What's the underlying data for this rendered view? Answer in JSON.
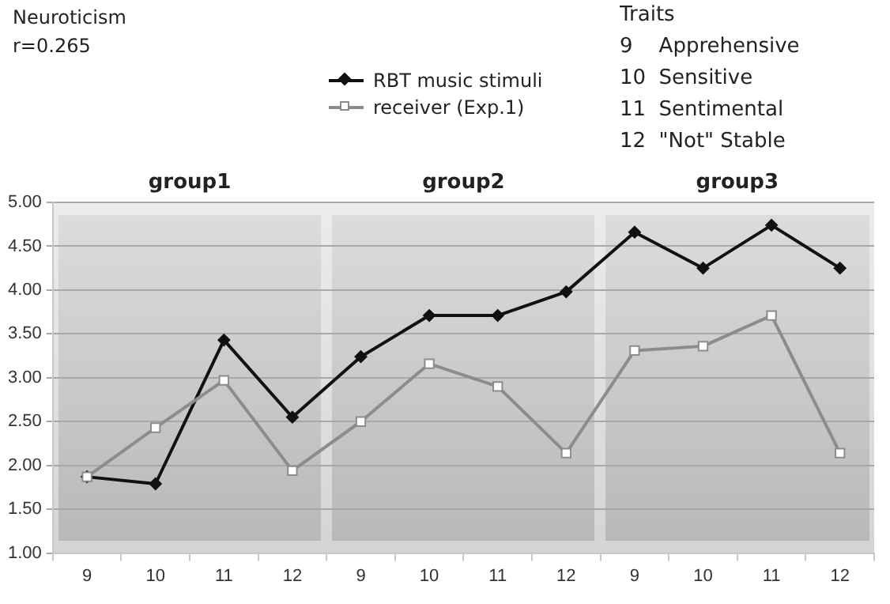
{
  "chart_data": {
    "type": "line",
    "title": "Neuroticism",
    "subtitle": "r=0.265",
    "annotations": [
      "group1",
      "group2",
      "group3",
      "Traits",
      "9    Apprehensive",
      "10  Sensitive",
      "11  Sentimental",
      "12  \"Not\" Stable"
    ],
    "categories": [
      "9",
      "10",
      "11",
      "12",
      "9",
      "10",
      "11",
      "12",
      "9",
      "10",
      "11",
      "12"
    ],
    "series": [
      {
        "name": "RBT music stimuli",
        "color": "#111111",
        "marker": "diamond",
        "values": [
          1.87,
          1.79,
          3.43,
          2.55,
          3.24,
          3.71,
          3.71,
          3.98,
          4.66,
          4.25,
          4.74,
          4.25
        ]
      },
      {
        "name": "receiver (Exp.1)",
        "color": "#8c8c8c",
        "marker": "square",
        "values": [
          1.87,
          2.43,
          2.97,
          1.94,
          2.5,
          3.16,
          2.9,
          2.14,
          3.31,
          3.36,
          3.71,
          2.14
        ]
      }
    ],
    "ylim": [
      1,
      5
    ],
    "yticks": [
      {
        "value": 1,
        "label": "1.00"
      },
      {
        "value": 1.5,
        "label": "1.50"
      },
      {
        "value": 2,
        "label": "2.00"
      },
      {
        "value": 2.5,
        "label": "2.50"
      },
      {
        "value": 3,
        "label": "3.00"
      },
      {
        "value": 3.5,
        "label": "3.50"
      },
      {
        "value": 4,
        "label": "4.00"
      },
      {
        "value": 4.5,
        "label": "4.50"
      },
      {
        "value": 5,
        "label": "5.00"
      }
    ],
    "grid": "y",
    "legend": "top"
  }
}
